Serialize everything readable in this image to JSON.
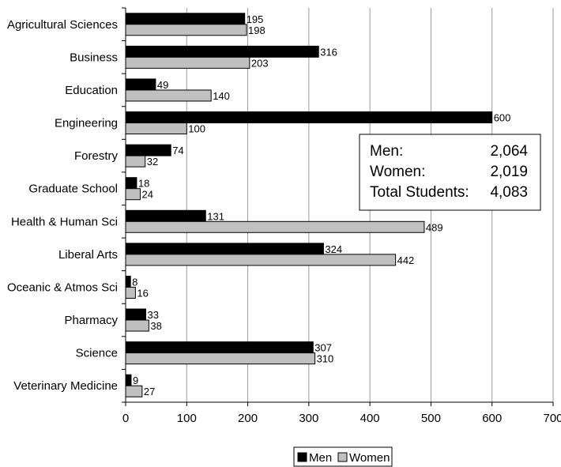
{
  "chart_data": {
    "type": "bar",
    "orientation": "horizontal",
    "categories": [
      "Agricultural Sciences",
      "Business",
      "Education",
      "Engineering",
      "Forestry",
      "Graduate School",
      "Health & Human Sci",
      "Liberal Arts",
      "Oceanic & Atmos Sci",
      "Pharmacy",
      "Science",
      "Veterinary Medicine"
    ],
    "series": [
      {
        "name": "Men",
        "color": "#000000",
        "values": [
          195,
          316,
          49,
          600,
          74,
          18,
          131,
          324,
          8,
          33,
          307,
          9
        ]
      },
      {
        "name": "Women",
        "color": "#c0c0c0",
        "values": [
          198,
          203,
          140,
          100,
          32,
          24,
          489,
          442,
          16,
          38,
          310,
          27
        ]
      }
    ],
    "xlim": [
      0,
      700
    ],
    "xticks": [
      0,
      100,
      200,
      300,
      400,
      500,
      600,
      700
    ],
    "title": "",
    "xlabel": "",
    "ylabel": "",
    "grid": "vertical",
    "legend_position": "bottom",
    "summary": [
      {
        "label": "Men:",
        "value": "2,064"
      },
      {
        "label": "Women:",
        "value": "2,019"
      },
      {
        "label": "Total Students:",
        "value": "4,083"
      }
    ]
  }
}
